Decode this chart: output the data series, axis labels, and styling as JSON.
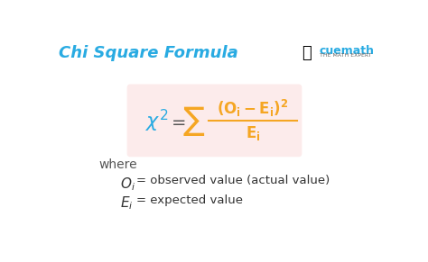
{
  "title": "Chi Square Formula",
  "title_color": "#29ABE2",
  "title_fontsize": 13,
  "bg_color": "#ffffff",
  "formula_box_color": "#fce8e8",
  "formula_color": "#F5A623",
  "chi_color": "#29ABE2",
  "equal_color": "#555555",
  "where_text": "where",
  "where_color": "#555555",
  "oi_label": "$O_{i}$",
  "oi_desc": "= observed value (actual value)",
  "ei_label": "$E_{i}$",
  "ei_desc": "= expected value",
  "label_color": "#333333",
  "cuemath_text": "cuemath",
  "cuemath_sub": "THE MATH EXPERT",
  "cuemath_color": "#29ABE2",
  "cuemath_sub_color": "#666666"
}
